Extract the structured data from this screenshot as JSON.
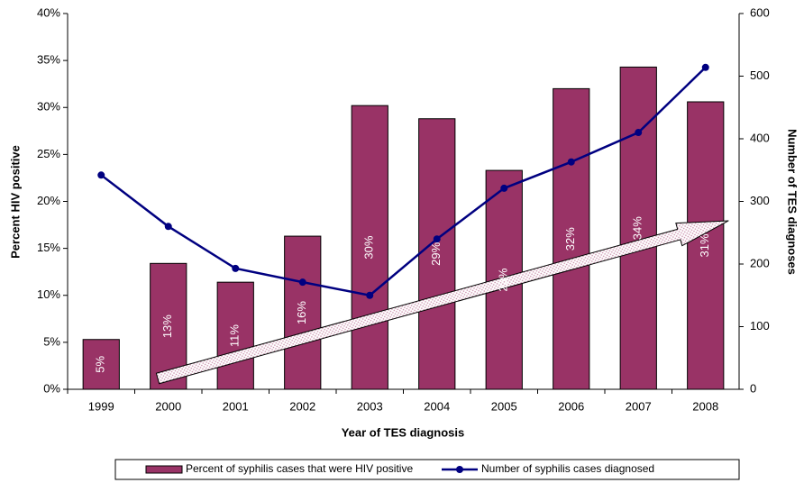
{
  "chart_data": {
    "type": "combo",
    "categories": [
      "1999",
      "2000",
      "2001",
      "2002",
      "2003",
      "2004",
      "2005",
      "2006",
      "2007",
      "2008"
    ],
    "x_label": "Year of TES diagnosis",
    "y_label": "Percent HIV positive",
    "y2_label": "Number of TES diagnoses",
    "ylim": [
      0,
      40
    ],
    "yticks": [
      {
        "value": 0,
        "label": "0%"
      },
      {
        "value": 5,
        "label": "5%"
      },
      {
        "value": 10,
        "label": "10%"
      },
      {
        "value": 15,
        "label": "15%"
      },
      {
        "value": 20,
        "label": "20%"
      },
      {
        "value": 25,
        "label": "25%"
      },
      {
        "value": 30,
        "label": "30%"
      },
      {
        "value": 35,
        "label": "35%"
      },
      {
        "value": 40,
        "label": "40%"
      }
    ],
    "y2lim": [
      0,
      600
    ],
    "y2ticks": [
      0,
      100,
      200,
      300,
      400,
      500,
      600
    ],
    "series": [
      {
        "name": "Percent of syphilis cases that were HIV positive",
        "type": "bar",
        "color": "#993366",
        "values": [
          5.3,
          13.4,
          11.4,
          16.3,
          30.2,
          28.8,
          23.3,
          32.0,
          34.3,
          30.6
        ],
        "value_labels": [
          "5%",
          "13%",
          "11%",
          "16%",
          "30%",
          "29%",
          "23%",
          "32%",
          "34%",
          "31%"
        ]
      },
      {
        "name": "Number of syphilis cases diagnosed",
        "type": "line",
        "color": "#000080",
        "axis": "y2",
        "values": [
          342,
          260,
          193,
          171,
          150,
          240,
          321,
          363,
          410,
          514
        ]
      }
    ]
  }
}
